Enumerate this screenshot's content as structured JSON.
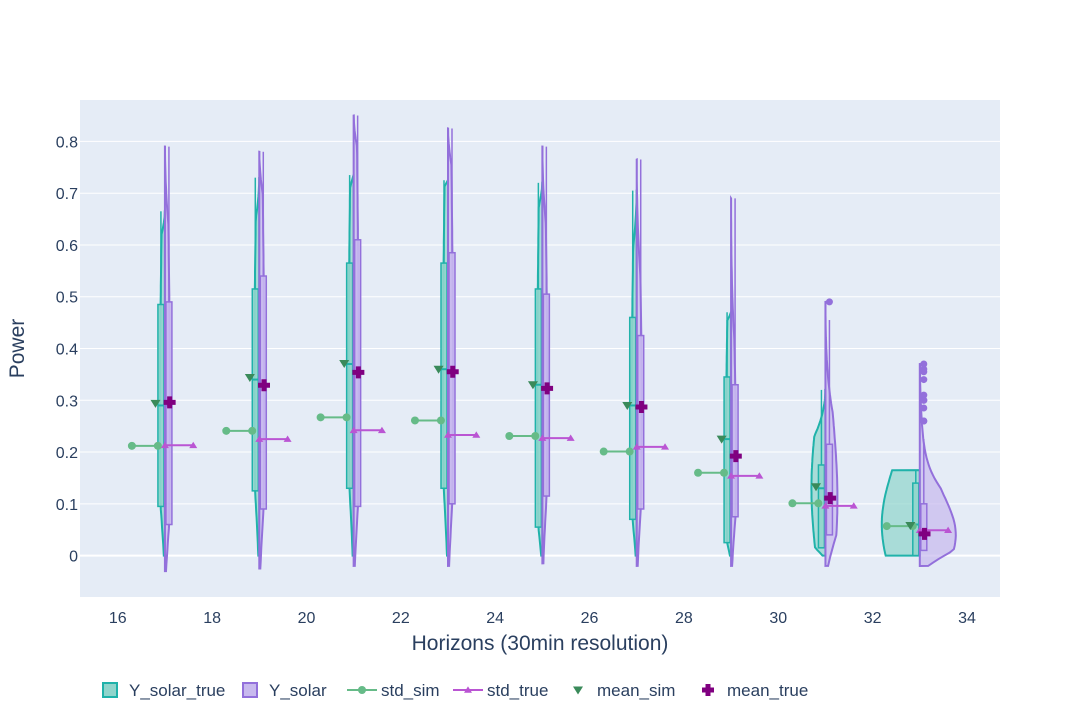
{
  "chart_data": {
    "type": "violin",
    "xlabel": "Horizons (30min resolution)",
    "ylabel": "Power",
    "xlim": [
      15.2,
      34.7
    ],
    "ylim": [
      -0.08,
      0.88
    ],
    "xticks": [
      "16",
      "18",
      "20",
      "22",
      "24",
      "26",
      "28",
      "30",
      "32",
      "34"
    ],
    "yticks": [
      "0",
      "0.1",
      "0.2",
      "0.3",
      "0.4",
      "0.5",
      "0.6",
      "0.7",
      "0.8"
    ],
    "horizons": [
      17,
      19,
      21,
      23,
      25,
      27,
      29,
      31,
      33
    ],
    "colors": {
      "background": "#e5ecf6",
      "grid": "#ffffff",
      "true_fill": "#90d5cc",
      "true_line": "#20b2aa",
      "sim_fill": "#c8b9ee",
      "sim_line": "#9370db",
      "std_sim": "#66bb88",
      "std_true": "#ba55d3",
      "mean_sim": "#3a8a5a",
      "mean_true": "#800080"
    },
    "series": [
      {
        "name": "Y_solar_true",
        "kind": "violin-left"
      },
      {
        "name": "Y_solar",
        "kind": "violin-right"
      },
      {
        "name": "std_sim",
        "kind": "line-marker-circle"
      },
      {
        "name": "std_true",
        "kind": "line-marker-triangle"
      },
      {
        "name": "mean_sim",
        "kind": "marker-triangle-down"
      },
      {
        "name": "mean_true",
        "kind": "marker-cross"
      }
    ],
    "Y_solar_true": [
      {
        "x": 17,
        "min": 0.0,
        "max": 0.665,
        "q1": 0.095,
        "median": 0.29,
        "q3": 0.485,
        "upper_fence": 0.665
      },
      {
        "x": 19,
        "min": 0.0,
        "max": 0.73,
        "q1": 0.125,
        "median": 0.34,
        "q3": 0.515,
        "upper_fence": 0.73
      },
      {
        "x": 21,
        "min": 0.0,
        "max": 0.735,
        "q1": 0.13,
        "median": 0.37,
        "q3": 0.565,
        "upper_fence": 0.735
      },
      {
        "x": 23,
        "min": 0.0,
        "max": 0.725,
        "q1": 0.13,
        "median": 0.36,
        "q3": 0.565,
        "upper_fence": 0.725
      },
      {
        "x": 25,
        "min": 0.0,
        "max": 0.72,
        "q1": 0.055,
        "median": 0.33,
        "q3": 0.515,
        "upper_fence": 0.72
      },
      {
        "x": 27,
        "min": 0.0,
        "max": 0.705,
        "q1": 0.07,
        "median": 0.29,
        "q3": 0.46,
        "upper_fence": 0.705
      },
      {
        "x": 29,
        "min": 0.0,
        "max": 0.47,
        "q1": 0.025,
        "median": 0.225,
        "q3": 0.345,
        "upper_fence": 0.47
      },
      {
        "x": 31,
        "min": 0.0,
        "max": 0.32,
        "q1": 0.015,
        "median": 0.13,
        "q3": 0.175,
        "upper_fence": 0.32
      },
      {
        "x": 33,
        "min": 0.0,
        "max": 0.165,
        "q1": 0.0,
        "median": 0.06,
        "q3": 0.14,
        "upper_fence": 0.165
      }
    ],
    "Y_solar": [
      {
        "x": 17,
        "min": -0.03,
        "max": 0.79,
        "q1": 0.06,
        "median": 0.29,
        "q3": 0.49,
        "upper_fence": 0.79
      },
      {
        "x": 19,
        "min": -0.025,
        "max": 0.78,
        "q1": 0.09,
        "median": 0.33,
        "q3": 0.54,
        "upper_fence": 0.78
      },
      {
        "x": 21,
        "min": -0.02,
        "max": 0.85,
        "q1": 0.095,
        "median": 0.355,
        "q3": 0.61,
        "upper_fence": 0.85
      },
      {
        "x": 23,
        "min": -0.02,
        "max": 0.825,
        "q1": 0.1,
        "median": 0.355,
        "q3": 0.585,
        "upper_fence": 0.825
      },
      {
        "x": 25,
        "min": -0.015,
        "max": 0.79,
        "q1": 0.115,
        "median": 0.32,
        "q3": 0.505,
        "upper_fence": 0.79
      },
      {
        "x": 27,
        "min": -0.02,
        "max": 0.765,
        "q1": 0.09,
        "median": 0.29,
        "q3": 0.425,
        "upper_fence": 0.765
      },
      {
        "x": 29,
        "min": -0.02,
        "max": 0.69,
        "q1": 0.075,
        "median": 0.19,
        "q3": 0.33,
        "upper_fence": 0.69
      },
      {
        "x": 31,
        "min": -0.02,
        "max": 0.49,
        "q1": 0.04,
        "median": 0.11,
        "q3": 0.215,
        "upper_fence": 0.455,
        "outliers": [
          0.49
        ]
      },
      {
        "x": 33,
        "min": -0.02,
        "max": 0.37,
        "q1": 0.01,
        "median": 0.04,
        "q3": 0.1,
        "upper_fence": 0.225,
        "outliers": [
          0.26,
          0.26,
          0.285,
          0.3,
          0.3,
          0.31,
          0.34,
          0.355,
          0.36,
          0.37
        ]
      }
    ],
    "std_sim": [
      {
        "x": 17,
        "y": 0.212
      },
      {
        "x": 19,
        "y": 0.241
      },
      {
        "x": 21,
        "y": 0.267
      },
      {
        "x": 23,
        "y": 0.261
      },
      {
        "x": 25,
        "y": 0.231
      },
      {
        "x": 27,
        "y": 0.201
      },
      {
        "x": 29,
        "y": 0.16
      },
      {
        "x": 31,
        "y": 0.101
      },
      {
        "x": 33,
        "y": 0.057
      }
    ],
    "std_true": [
      {
        "x": 17,
        "y": 0.213
      },
      {
        "x": 19,
        "y": 0.225
      },
      {
        "x": 21,
        "y": 0.242
      },
      {
        "x": 23,
        "y": 0.233
      },
      {
        "x": 25,
        "y": 0.227
      },
      {
        "x": 27,
        "y": 0.21
      },
      {
        "x": 29,
        "y": 0.154
      },
      {
        "x": 31,
        "y": 0.096
      },
      {
        "x": 33,
        "y": 0.049
      }
    ],
    "mean_sim": [
      0.294,
      0.344,
      0.371,
      0.36,
      0.33,
      0.29,
      0.225,
      0.133,
      0.058
    ],
    "mean_true": [
      0.296,
      0.329,
      0.354,
      0.355,
      0.323,
      0.287,
      0.192,
      0.111,
      0.042
    ]
  }
}
